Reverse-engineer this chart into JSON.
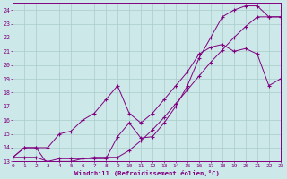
{
  "xlabel": "Windchill (Refroidissement éolien,°C)",
  "xlim": [
    0,
    23
  ],
  "ylim": [
    13,
    24.5
  ],
  "yticks": [
    13,
    14,
    15,
    16,
    17,
    18,
    19,
    20,
    21,
    22,
    23,
    24
  ],
  "xticks": [
    0,
    1,
    2,
    3,
    4,
    5,
    6,
    7,
    8,
    9,
    10,
    11,
    12,
    13,
    14,
    15,
    16,
    17,
    18,
    19,
    20,
    21,
    22,
    23
  ],
  "line_color": "#800080",
  "bg_color": "#cce8e8",
  "grid_color": "#aacccc",
  "line1_x": [
    0,
    1,
    2,
    3,
    4,
    5,
    6,
    7,
    8,
    9,
    10,
    11,
    12,
    13,
    14,
    15,
    16,
    17,
    18,
    19,
    20,
    21,
    22,
    23
  ],
  "line1_y": [
    13.3,
    13.3,
    13.3,
    13.0,
    13.2,
    13.2,
    13.2,
    13.3,
    13.3,
    13.3,
    13.8,
    14.5,
    15.3,
    16.2,
    17.2,
    18.2,
    19.2,
    20.2,
    21.1,
    22.0,
    22.8,
    23.5,
    23.5,
    23.5
  ],
  "line2_x": [
    0,
    1,
    2,
    3,
    4,
    5,
    6,
    7,
    8,
    9,
    10,
    11,
    12,
    13,
    14,
    15,
    16,
    17,
    18,
    19,
    20,
    21,
    22,
    23
  ],
  "line2_y": [
    13.3,
    14.0,
    14.0,
    12.8,
    13.0,
    13.0,
    13.2,
    13.2,
    13.2,
    14.8,
    15.8,
    14.7,
    14.8,
    15.8,
    17.0,
    18.5,
    20.5,
    22.0,
    23.5,
    24.0,
    24.3,
    24.3,
    23.5,
    23.5
  ],
  "line3_x": [
    0,
    1,
    2,
    3,
    4,
    5,
    6,
    7,
    8,
    9,
    10,
    11,
    12,
    13,
    14,
    15,
    16,
    17,
    18,
    19,
    20,
    21,
    22,
    23
  ],
  "line3_y": [
    13.3,
    14.0,
    14.0,
    14.0,
    15.0,
    15.2,
    16.0,
    16.5,
    17.5,
    18.5,
    16.5,
    15.8,
    16.5,
    17.5,
    18.5,
    19.5,
    20.8,
    21.3,
    21.5,
    21.0,
    21.2,
    20.8,
    18.5,
    19.0
  ]
}
